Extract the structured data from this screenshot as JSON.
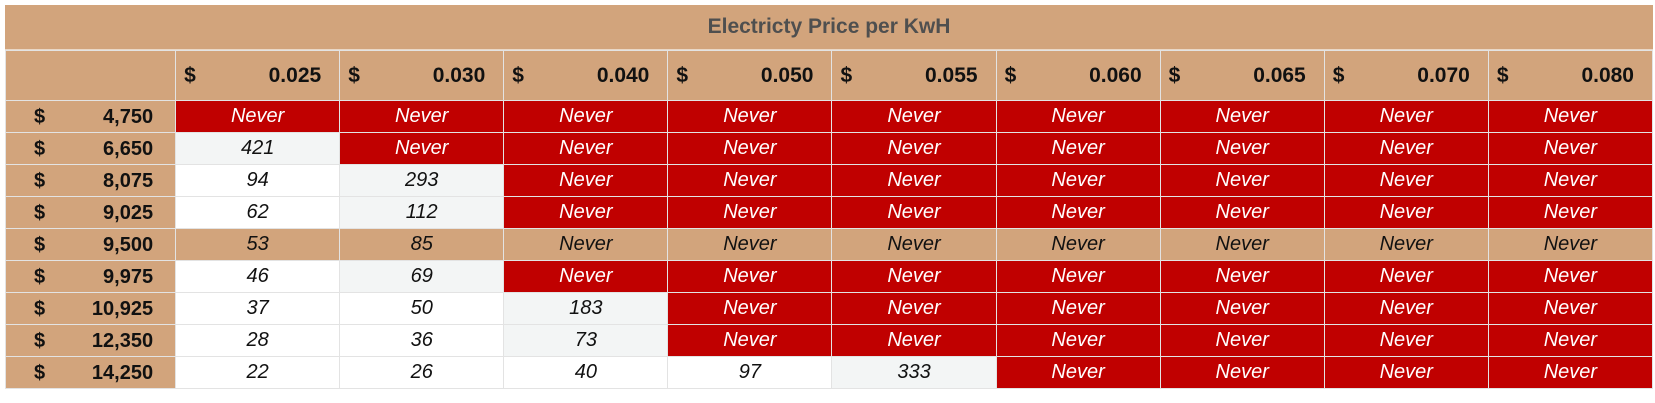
{
  "title": "Electricty Price per KwH",
  "currency_symbol": "$",
  "colors": {
    "header_tan": "#d2a47c",
    "never_red": "#c00000",
    "title_text": "#4f4f4f"
  },
  "prices": [
    "0.025",
    "0.030",
    "0.040",
    "0.050",
    "0.055",
    "0.060",
    "0.065",
    "0.070",
    "0.080"
  ],
  "rows": [
    {
      "cost": "4,750",
      "values": [
        "Never",
        "Never",
        "Never",
        "Never",
        "Never",
        "Never",
        "Never",
        "Never",
        "Never"
      ]
    },
    {
      "cost": "6,650",
      "values": [
        "421",
        "Never",
        "Never",
        "Never",
        "Never",
        "Never",
        "Never",
        "Never",
        "Never"
      ]
    },
    {
      "cost": "8,075",
      "values": [
        "94",
        "293",
        "Never",
        "Never",
        "Never",
        "Never",
        "Never",
        "Never",
        "Never"
      ]
    },
    {
      "cost": "9,025",
      "values": [
        "62",
        "112",
        "Never",
        "Never",
        "Never",
        "Never",
        "Never",
        "Never",
        "Never"
      ]
    },
    {
      "cost": "9,500",
      "values": [
        "53",
        "85",
        "Never",
        "Never",
        "Never",
        "Never",
        "Never",
        "Never",
        "Never"
      ]
    },
    {
      "cost": "9,975",
      "values": [
        "46",
        "69",
        "Never",
        "Never",
        "Never",
        "Never",
        "Never",
        "Never",
        "Never"
      ]
    },
    {
      "cost": "10,925",
      "values": [
        "37",
        "50",
        "183",
        "Never",
        "Never",
        "Never",
        "Never",
        "Never",
        "Never"
      ]
    },
    {
      "cost": "12,350",
      "values": [
        "28",
        "36",
        "73",
        "Never",
        "Never",
        "Never",
        "Never",
        "Never",
        "Never"
      ]
    },
    {
      "cost": "14,250",
      "values": [
        "22",
        "26",
        "40",
        "97",
        "333",
        "Never",
        "Never",
        "Never",
        "Never"
      ]
    }
  ],
  "highlight_row_index": 4
}
